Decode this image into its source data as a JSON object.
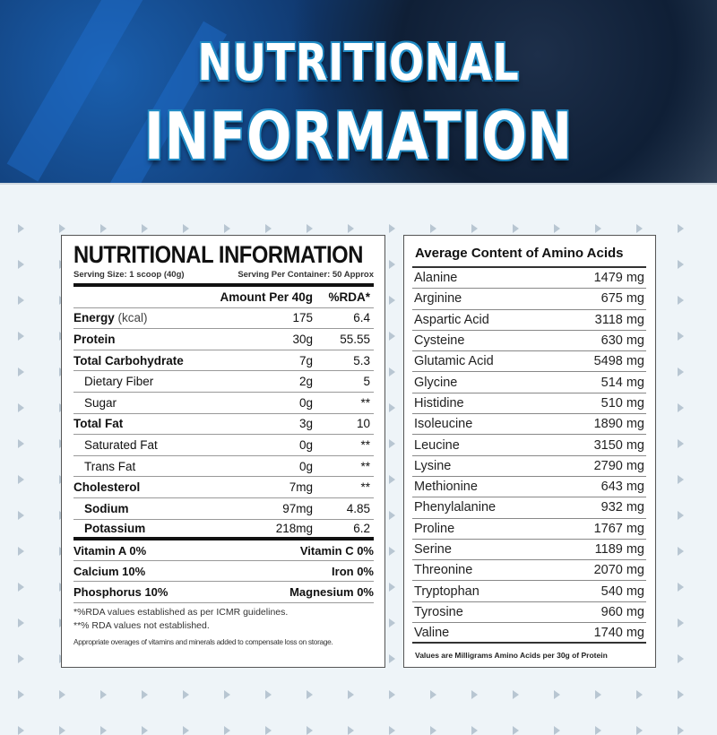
{
  "banner": {
    "line1": "NUTRITIONAL",
    "line2": "INFORMATION"
  },
  "label": {
    "title": "NUTRITIONAL INFORMATION",
    "serving_size": "Serving Size: 1 scoop (40g)",
    "servings_per_container": "Serving Per Container: 50 Approx",
    "col_amount": "Amount Per 40g",
    "col_rda": "%RDA*",
    "rows": [
      {
        "label": "Energy",
        "unit": " (kcal)",
        "amount": "175",
        "rda": "6.4"
      },
      {
        "label": "Protein",
        "unit": "",
        "amount": "30g",
        "rda": "55.55"
      },
      {
        "label": "Total Carbohydrate",
        "unit": "",
        "amount": "7g",
        "rda": "5.3"
      },
      {
        "label": "Dietary Fiber",
        "unit": "",
        "amount": "2g",
        "rda": "5"
      },
      {
        "label": "Sugar",
        "unit": "",
        "amount": "0g",
        "rda": "**"
      },
      {
        "label": "Total Fat",
        "unit": "",
        "amount": "3g",
        "rda": "10"
      },
      {
        "label": "Saturated Fat",
        "unit": "",
        "amount": "0g",
        "rda": "**"
      },
      {
        "label": "Trans Fat",
        "unit": "",
        "amount": "0g",
        "rda": "**"
      },
      {
        "label": "Cholesterol",
        "unit": "",
        "amount": "7mg",
        "rda": "**"
      },
      {
        "label": "Sodium",
        "unit": "",
        "amount": "97mg",
        "rda": "4.85"
      },
      {
        "label": "Potassium",
        "unit": "",
        "amount": "218mg",
        "rda": "6.2"
      }
    ],
    "vitamins": [
      {
        "left": "Vitamin A 0%",
        "right": "Vitamin C 0%"
      },
      {
        "left": "Calcium 10%",
        "right": "Iron 0%"
      },
      {
        "left": "Phosphorus 10%",
        "right": "Magnesium 0%"
      }
    ],
    "footnote1": "*%RDA values established as per ICMR guidelines.",
    "footnote2": "**% RDA values not established.",
    "footnote3": "Appropriate overages of vitamins and minerals added to compensate loss on storage."
  },
  "amino": {
    "title": "Average Content of Amino Acids",
    "rows": [
      {
        "name": "Alanine",
        "value": "1479 mg"
      },
      {
        "name": "Arginine",
        "value": "675 mg"
      },
      {
        "name": "Aspartic Acid",
        "value": "3118 mg"
      },
      {
        "name": "Cysteine",
        "value": "630 mg"
      },
      {
        "name": "Glutamic Acid",
        "value": "5498 mg"
      },
      {
        "name": "Glycine",
        "value": "514 mg"
      },
      {
        "name": "Histidine",
        "value": "510 mg"
      },
      {
        "name": "Isoleucine",
        "value": "1890 mg"
      },
      {
        "name": "Leucine",
        "value": "3150 mg"
      },
      {
        "name": "Lysine",
        "value": "2790 mg"
      },
      {
        "name": "Methionine",
        "value": "643 mg"
      },
      {
        "name": "Phenylalanine",
        "value": "932 mg"
      },
      {
        "name": "Proline",
        "value": "1767 mg"
      },
      {
        "name": "Serine",
        "value": "1189 mg"
      },
      {
        "name": "Threonine",
        "value": "2070 mg"
      },
      {
        "name": "Tryptophan",
        "value": "540 mg"
      },
      {
        "name": "Tyrosine",
        "value": "960 mg"
      },
      {
        "name": "Valine",
        "value": "1740 mg"
      }
    ],
    "footer": "Values are Milligrams Amino Acids per 30g of Protein"
  }
}
